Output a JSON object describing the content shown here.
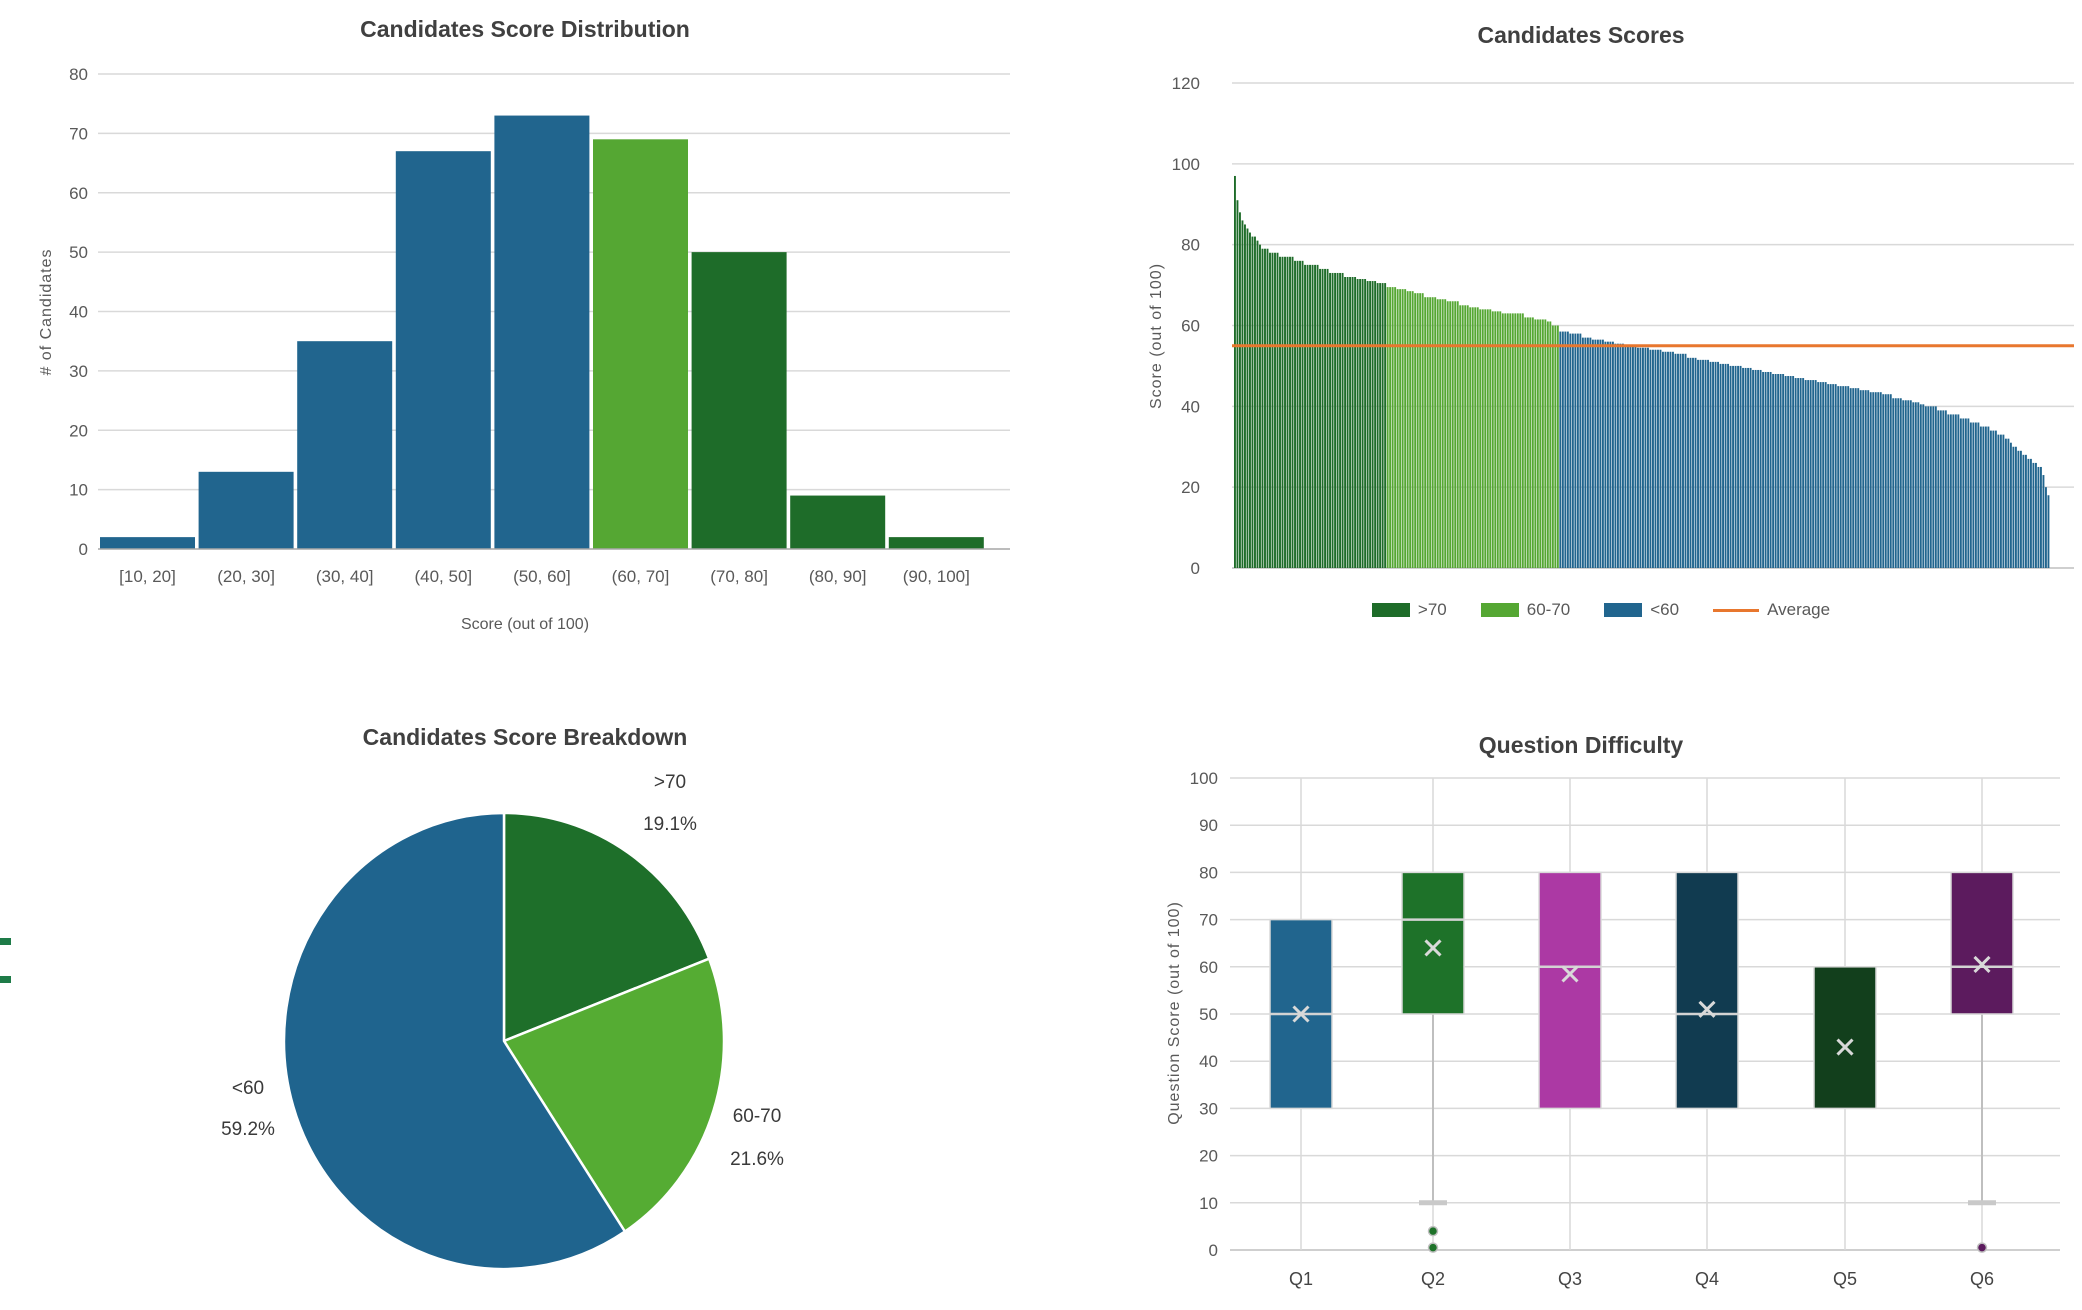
{
  "page": {
    "background": "#FFFFFF"
  },
  "palette": {
    "blue": "#21658E",
    "light_green": "#55A733",
    "dark_green": "#1E6C29",
    "orange": "#E8772E",
    "gridline": "#D9D9D9",
    "axis_line": "#A6A6A6",
    "tick_text": "#595959",
    "title_text": "#404040"
  },
  "chart_data": [
    {
      "id": "histogram",
      "type": "bar",
      "title": "Candidates Score Distribution",
      "xlabel": "Score (out of 100)",
      "ylabel": "# of Candidates",
      "ylim": [
        0,
        80
      ],
      "yticks": [
        0,
        10,
        20,
        30,
        40,
        50,
        60,
        70,
        80
      ],
      "grid": "horizontal",
      "categories": [
        "[10, 20]",
        "(20, 30]",
        "(30, 40]",
        "(40, 50]",
        "(50, 60]",
        "(60, 70]",
        "(70, 80]",
        "(80, 90]",
        "(90, 100]"
      ],
      "values": [
        2,
        13,
        35,
        67,
        73,
        69,
        50,
        9,
        2
      ],
      "bar_colors": [
        "#21658E",
        "#21658E",
        "#21658E",
        "#21658E",
        "#21658E",
        "#55A733",
        "#1E6C29",
        "#1E6C29",
        "#1E6C29"
      ]
    },
    {
      "id": "scores",
      "type": "bar",
      "title": "Candidates Scores",
      "ylabel": "Score (out of 100)",
      "ylim": [
        0,
        120
      ],
      "yticks": [
        0,
        20,
        40,
        60,
        80,
        100,
        120
      ],
      "grid": "horizontal",
      "sort": "descending",
      "average": 55,
      "average_color": "#E8772E",
      "colors": {
        "above_70": "#1E6C29",
        "between_60_70": "#55A733",
        "below_60": "#21658E"
      },
      "values_runs": [
        [
          97,
          1
        ],
        [
          91,
          1
        ],
        [
          88,
          1
        ],
        [
          86,
          1
        ],
        [
          85,
          1
        ],
        [
          84,
          1
        ],
        [
          83,
          1
        ],
        [
          82,
          2
        ],
        [
          81,
          1
        ],
        [
          80,
          1
        ],
        [
          79,
          3
        ],
        [
          78,
          4
        ],
        [
          77,
          6
        ],
        [
          76,
          4
        ],
        [
          75,
          6
        ],
        [
          74,
          4
        ],
        [
          73,
          6
        ],
        [
          72,
          5
        ],
        [
          71.5,
          4
        ],
        [
          71,
          4
        ],
        [
          70.5,
          4
        ],
        [
          69.5,
          4
        ],
        [
          69,
          4
        ],
        [
          68.5,
          3
        ],
        [
          68,
          4
        ],
        [
          67,
          5
        ],
        [
          66.5,
          4
        ],
        [
          66,
          5
        ],
        [
          65,
          4
        ],
        [
          64.5,
          4
        ],
        [
          64,
          5
        ],
        [
          63.5,
          4
        ],
        [
          63,
          9
        ],
        [
          62,
          4
        ],
        [
          61.5,
          5
        ],
        [
          61,
          2
        ],
        [
          60,
          3
        ],
        [
          58.5,
          4
        ],
        [
          58,
          5
        ],
        [
          57,
          4
        ],
        [
          56.5,
          5
        ],
        [
          56,
          4
        ],
        [
          55.5,
          4
        ],
        [
          55,
          5
        ],
        [
          54.5,
          5
        ],
        [
          54,
          5
        ],
        [
          53.5,
          5
        ],
        [
          53,
          5
        ],
        [
          52,
          4
        ],
        [
          51.5,
          5
        ],
        [
          51,
          4
        ],
        [
          50.5,
          4
        ],
        [
          50,
          5
        ],
        [
          49.5,
          4
        ],
        [
          49,
          4
        ],
        [
          48.5,
          4
        ],
        [
          48,
          5
        ],
        [
          47.5,
          4
        ],
        [
          47,
          4
        ],
        [
          46.5,
          5
        ],
        [
          46,
          4
        ],
        [
          45.5,
          4
        ],
        [
          45,
          5
        ],
        [
          44.5,
          4
        ],
        [
          44,
          4
        ],
        [
          43.5,
          5
        ],
        [
          43,
          4
        ],
        [
          42,
          4
        ],
        [
          41.5,
          4
        ],
        [
          41,
          3
        ],
        [
          40.5,
          2
        ],
        [
          40,
          5
        ],
        [
          39,
          4
        ],
        [
          38,
          5
        ],
        [
          37,
          4
        ],
        [
          36,
          4
        ],
        [
          35,
          4
        ],
        [
          34,
          3
        ],
        [
          33,
          3
        ],
        [
          32,
          2
        ],
        [
          31,
          1
        ],
        [
          30,
          2
        ],
        [
          29,
          2
        ],
        [
          28,
          2
        ],
        [
          27,
          2
        ],
        [
          26,
          2
        ],
        [
          25,
          2
        ],
        [
          23,
          1
        ],
        [
          20,
          1
        ],
        [
          18,
          1
        ]
      ],
      "legend": [
        {
          "label": ">70",
          "color": "#1E6C29",
          "marker": "swatch"
        },
        {
          "label": "60-70",
          "color": "#55A733",
          "marker": "swatch"
        },
        {
          "label": "<60",
          "color": "#21658E",
          "marker": "swatch"
        },
        {
          "label": "Average",
          "color": "#E8772E",
          "marker": "line"
        }
      ]
    },
    {
      "id": "pie",
      "type": "pie",
      "title": "Candidates Score Breakdown",
      "labels": [
        ">70",
        "60-70",
        "<60"
      ],
      "values": [
        19.1,
        21.6,
        59.2
      ],
      "value_labels": [
        "19.1%",
        "21.6%",
        "59.2%"
      ],
      "colors": [
        "#1E6F2A",
        "#55AC33",
        "#1F648E"
      ],
      "start_angle": "top",
      "direction": "clockwise",
      "legend_position": "none"
    },
    {
      "id": "boxplot",
      "type": "box",
      "title": "Question Difficulty",
      "ylabel": "Question Score (out of 100)",
      "ylim": [
        0,
        100
      ],
      "yticks": [
        0,
        10,
        20,
        30,
        40,
        50,
        60,
        70,
        80,
        90,
        100
      ],
      "grid": "both",
      "categories": [
        "Q1",
        "Q2",
        "Q3",
        "Q4",
        "Q5",
        "Q6"
      ],
      "boxes": [
        {
          "label": "Q1",
          "box_low": 30,
          "box_high": 70,
          "median": 50,
          "mean": 50,
          "whisker_low": null,
          "outliers": [],
          "color": "#21658E"
        },
        {
          "label": "Q2",
          "box_low": 50,
          "box_high": 80,
          "median": 70,
          "mean": 64,
          "whisker_low": 10,
          "outliers": [
            4,
            0.5
          ],
          "color": "#1E7229"
        },
        {
          "label": "Q3",
          "box_low": 30,
          "box_high": 80,
          "median": 60,
          "mean": 58.5,
          "whisker_low": null,
          "outliers": [],
          "color": "#AC39A4"
        },
        {
          "label": "Q4",
          "box_low": 30,
          "box_high": 80,
          "median": 50,
          "mean": 51,
          "whisker_low": null,
          "outliers": [],
          "color": "#113B50"
        },
        {
          "label": "Q5",
          "box_low": 30,
          "box_high": 60,
          "median": null,
          "mean": 43,
          "whisker_low": null,
          "outliers": [],
          "color": "#123F1C"
        },
        {
          "label": "Q6",
          "box_low": 50,
          "box_high": 80,
          "median": 60,
          "mean": 60.5,
          "whisker_low": 10,
          "outliers": [
            0.5
          ],
          "color": "#5C1B5E"
        }
      ],
      "marker_legend": {
        "median": "horizontal line",
        "mean": "x marker"
      }
    }
  ],
  "decorations": {
    "left_edge_marks": {
      "color": "#1E7B48",
      "count": 2
    }
  }
}
